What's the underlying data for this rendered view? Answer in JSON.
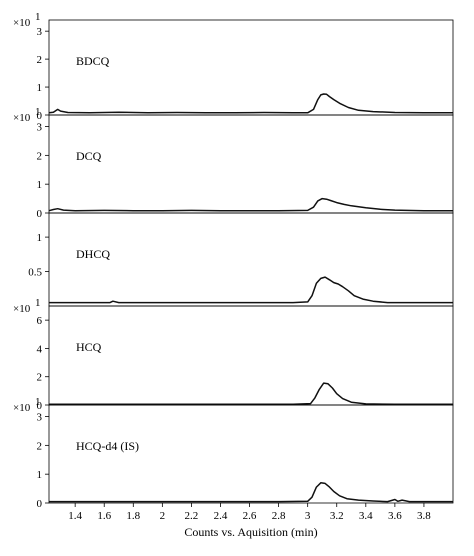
{
  "chart_data": {
    "type": "line",
    "xlabel": "Counts vs. Aquisition (min)",
    "xlim": [
      1.22,
      4.0
    ],
    "x_ticks": [
      1.4,
      1.6,
      1.8,
      2,
      2.2,
      2.4,
      2.6,
      2.8,
      3,
      3.2,
      3.4,
      3.6,
      3.8
    ],
    "x_tick_labels": [
      "1.4",
      "1.6",
      "1.8",
      "2",
      "2.2",
      "2.4",
      "2.6",
      "2.8",
      "3",
      "3.2",
      "3.4",
      "3.6",
      "3.8"
    ],
    "grid": false,
    "panels": [
      {
        "label": "BDCQ",
        "scale_label": "×10",
        "scale_exp": "1",
        "ylim": [
          0,
          3.4
        ],
        "y_ticks": [
          0,
          1,
          2,
          3
        ],
        "y_tick_labels": [
          "0",
          "1",
          "2",
          "3"
        ],
        "x": [
          1.22,
          1.25,
          1.28,
          1.3,
          1.35,
          1.5,
          1.7,
          1.9,
          2.1,
          2.3,
          2.5,
          2.7,
          2.9,
          3.0,
          3.04,
          3.07,
          3.09,
          3.11,
          3.13,
          3.15,
          3.18,
          3.22,
          3.28,
          3.35,
          3.45,
          3.6,
          3.8,
          4.0
        ],
        "y": [
          0.08,
          0.1,
          0.2,
          0.14,
          0.09,
          0.08,
          0.1,
          0.08,
          0.09,
          0.08,
          0.08,
          0.09,
          0.08,
          0.08,
          0.2,
          0.55,
          0.72,
          0.75,
          0.74,
          0.66,
          0.55,
          0.42,
          0.27,
          0.17,
          0.12,
          0.09,
          0.08,
          0.08
        ]
      },
      {
        "label": "DCQ",
        "scale_label": "×10",
        "scale_exp": "1",
        "ylim": [
          0,
          3.4
        ],
        "y_ticks": [
          0,
          1,
          2,
          3
        ],
        "y_tick_labels": [
          "0",
          "1",
          "2",
          "3"
        ],
        "x": [
          1.22,
          1.25,
          1.28,
          1.32,
          1.4,
          1.6,
          1.8,
          2.0,
          2.2,
          2.4,
          2.6,
          2.8,
          3.0,
          3.04,
          3.07,
          3.1,
          3.13,
          3.16,
          3.2,
          3.25,
          3.3,
          3.4,
          3.5,
          3.6,
          3.8,
          4.0
        ],
        "y": [
          0.08,
          0.12,
          0.15,
          0.1,
          0.08,
          0.09,
          0.08,
          0.08,
          0.09,
          0.08,
          0.08,
          0.08,
          0.09,
          0.2,
          0.42,
          0.5,
          0.48,
          0.43,
          0.36,
          0.3,
          0.25,
          0.18,
          0.13,
          0.1,
          0.08,
          0.08
        ]
      },
      {
        "label": "DHCQ",
        "scale_label": "",
        "scale_exp": "",
        "ylim": [
          0,
          1.35
        ],
        "y_ticks": [
          0.5,
          1
        ],
        "y_tick_labels": [
          "0.5",
          "1"
        ],
        "x": [
          1.22,
          1.3,
          1.5,
          1.64,
          1.66,
          1.7,
          1.9,
          2.1,
          2.3,
          2.5,
          2.7,
          2.9,
          3.0,
          3.03,
          3.06,
          3.09,
          3.12,
          3.15,
          3.18,
          3.21,
          3.24,
          3.28,
          3.32,
          3.38,
          3.45,
          3.55,
          3.7,
          3.85,
          4.0
        ],
        "y": [
          0.05,
          0.05,
          0.05,
          0.05,
          0.07,
          0.05,
          0.05,
          0.05,
          0.05,
          0.05,
          0.05,
          0.05,
          0.06,
          0.15,
          0.33,
          0.4,
          0.42,
          0.38,
          0.34,
          0.32,
          0.28,
          0.22,
          0.15,
          0.1,
          0.07,
          0.05,
          0.05,
          0.05,
          0.05
        ]
      },
      {
        "label": "HCQ",
        "scale_label": "×10",
        "scale_exp": "1",
        "ylim": [
          0,
          7
        ],
        "y_ticks": [
          0,
          2,
          4,
          6
        ],
        "y_tick_labels": [
          "0",
          "2",
          "4",
          "6"
        ],
        "x": [
          1.22,
          1.3,
          1.5,
          1.7,
          1.9,
          2.1,
          2.3,
          2.5,
          2.7,
          2.9,
          3.02,
          3.05,
          3.08,
          3.11,
          3.14,
          3.17,
          3.2,
          3.24,
          3.3,
          3.4,
          3.6,
          3.8,
          4.0
        ],
        "y": [
          0.05,
          0.05,
          0.05,
          0.05,
          0.05,
          0.05,
          0.05,
          0.05,
          0.05,
          0.05,
          0.1,
          0.5,
          1.1,
          1.55,
          1.5,
          1.2,
          0.8,
          0.45,
          0.2,
          0.08,
          0.05,
          0.05,
          0.05
        ]
      },
      {
        "label": "HCQ-d4 (IS)",
        "scale_label": "×10",
        "scale_exp": "1",
        "ylim": [
          0,
          3.4
        ],
        "y_ticks": [
          0,
          1,
          2,
          3
        ],
        "y_tick_labels": [
          "0",
          "1",
          "2",
          "3"
        ],
        "x": [
          1.22,
          1.4,
          1.6,
          1.8,
          2.0,
          2.2,
          2.4,
          2.6,
          2.8,
          3.0,
          3.03,
          3.06,
          3.09,
          3.12,
          3.15,
          3.18,
          3.22,
          3.27,
          3.35,
          3.45,
          3.55,
          3.6,
          3.62,
          3.65,
          3.7,
          3.8,
          4.0
        ],
        "y": [
          0.05,
          0.05,
          0.05,
          0.05,
          0.05,
          0.05,
          0.05,
          0.05,
          0.05,
          0.06,
          0.2,
          0.55,
          0.7,
          0.68,
          0.55,
          0.4,
          0.25,
          0.15,
          0.1,
          0.07,
          0.05,
          0.12,
          0.06,
          0.1,
          0.05,
          0.05,
          0.05
        ]
      }
    ]
  }
}
